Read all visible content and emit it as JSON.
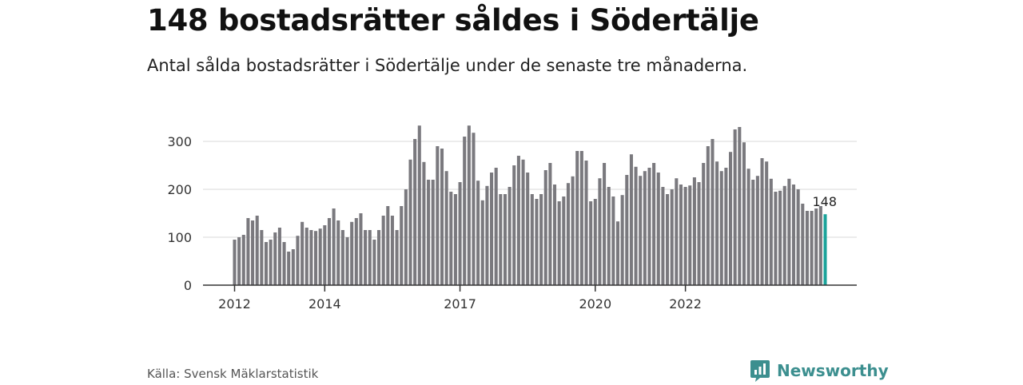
{
  "header": {
    "title": "148 bostadsrätter såldes i Södertälje",
    "subtitle": "Antal sålda bostadsrätter i Södertälje under de senaste tre månaderna."
  },
  "footer": {
    "source": "Källa: Svensk Mäklarstatistik",
    "brand": "Newsworthy"
  },
  "colors": {
    "bar": "#7a797e",
    "highlight": "#1aa39a",
    "grid": "#d9d9d9",
    "axis": "#333333",
    "brand": "#3c8f8f"
  },
  "chart_data": {
    "type": "bar",
    "title": "148 bostadsrätter såldes i Södertälje",
    "subtitle": "Antal sålda bostadsrätter i Södertälje under de senaste tre månaderna.",
    "xlabel": "",
    "ylabel": "",
    "ylim": [
      0,
      340
    ],
    "yticks": [
      0,
      100,
      200,
      300
    ],
    "x_tick_labels": [
      "2012",
      "2014",
      "2017",
      "2020",
      "2022"
    ],
    "x_tick_bar_index": [
      0,
      20,
      50,
      80,
      100
    ],
    "grid": true,
    "highlight_last": true,
    "highlight_label": "148",
    "values": [
      95,
      100,
      105,
      140,
      135,
      145,
      115,
      90,
      95,
      110,
      120,
      90,
      70,
      75,
      103,
      132,
      120,
      115,
      113,
      118,
      125,
      140,
      160,
      135,
      115,
      100,
      132,
      140,
      150,
      115,
      115,
      95,
      115,
      145,
      165,
      145,
      115,
      165,
      200,
      262,
      305,
      333,
      257,
      220,
      220,
      290,
      285,
      238,
      195,
      190,
      215,
      310,
      333,
      318,
      218,
      177,
      207,
      235,
      245,
      190,
      190,
      205,
      250,
      270,
      262,
      235,
      190,
      180,
      190,
      240,
      255,
      210,
      175,
      185,
      213,
      227,
      280,
      280,
      260,
      175,
      180,
      223,
      255,
      205,
      185,
      133,
      188,
      230,
      273,
      247,
      228,
      238,
      245,
      255,
      235,
      205,
      190,
      200,
      223,
      210,
      205,
      208,
      225,
      215,
      255,
      290,
      305,
      258,
      238,
      245,
      278,
      325,
      330,
      298,
      243,
      220,
      228,
      265,
      258,
      222,
      195,
      197,
      207,
      222,
      210,
      200,
      170,
      155,
      155,
      160,
      165,
      148
    ]
  }
}
